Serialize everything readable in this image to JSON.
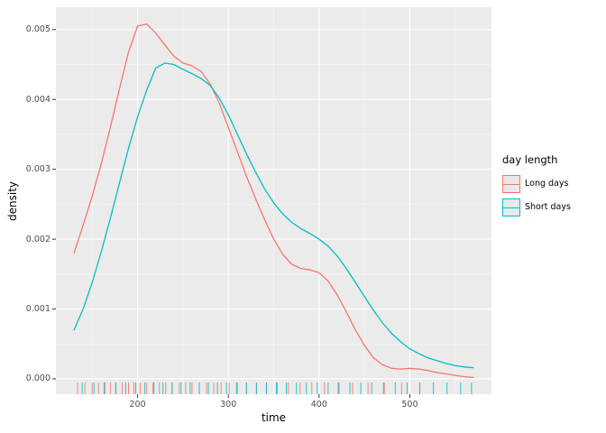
{
  "chart_data": {
    "type": "line",
    "title": "",
    "xlabel": "time",
    "ylabel": "density",
    "xlim": [
      110,
      590
    ],
    "ylim": [
      -0.00022,
      0.00532
    ],
    "xticks": [
      200,
      300,
      400,
      500
    ],
    "xtick_labels": [
      "200",
      "300",
      "400",
      "500"
    ],
    "yticks": [
      0,
      0.001,
      0.002,
      0.003,
      0.004,
      0.005
    ],
    "ytick_labels": [
      "0.000",
      "0.001",
      "0.002",
      "0.003",
      "0.004",
      "0.005"
    ],
    "grid": "major+minor",
    "panel_bg": "#EBEBEB",
    "grid_major_color": "#FFFFFF",
    "grid_minor_color": "#FFFFFF",
    "tick_mark_color": "#333333",
    "legend": {
      "title": "day length",
      "position": "right"
    },
    "series": [
      {
        "name": "Long days",
        "color": "#F8766D",
        "x": [
          130,
          140,
          150,
          160,
          170,
          180,
          190,
          200,
          210,
          220,
          230,
          240,
          250,
          260,
          270,
          280,
          290,
          300,
          310,
          320,
          330,
          340,
          350,
          360,
          370,
          380,
          390,
          400,
          410,
          420,
          430,
          440,
          450,
          460,
          470,
          480,
          490,
          500,
          510,
          520,
          530,
          540,
          550,
          560,
          570
        ],
        "y": [
          0.0018,
          0.0022,
          0.00262,
          0.00308,
          0.0036,
          0.00415,
          0.00468,
          0.00505,
          0.00508,
          0.00495,
          0.00478,
          0.00462,
          0.00452,
          0.00448,
          0.0044,
          0.00422,
          0.00395,
          0.0036,
          0.00325,
          0.0029,
          0.00258,
          0.00228,
          0.002,
          0.00178,
          0.00164,
          0.00158,
          0.00156,
          0.00152,
          0.0014,
          0.0012,
          0.00096,
          0.0007,
          0.00048,
          0.0003,
          0.0002,
          0.00015,
          0.00014,
          0.00015,
          0.00014,
          0.00012,
          9e-05,
          7e-05,
          5e-05,
          3e-05,
          2e-05
        ],
        "rug": [
          134,
          142,
          150,
          157,
          163,
          170,
          176,
          183,
          190,
          196,
          203,
          210,
          217,
          224,
          231,
          238,
          246,
          253,
          260,
          268,
          276,
          284,
          292,
          301,
          310,
          320,
          331,
          342,
          354,
          366,
          379,
          392,
          406,
          421,
          437,
          454,
          472,
          491,
          511
        ]
      },
      {
        "name": "Short days",
        "color": "#00BFC4",
        "x": [
          130,
          140,
          150,
          160,
          170,
          180,
          190,
          200,
          210,
          220,
          230,
          240,
          250,
          260,
          270,
          280,
          290,
          300,
          310,
          320,
          330,
          340,
          350,
          360,
          370,
          380,
          390,
          400,
          410,
          420,
          430,
          440,
          450,
          460,
          470,
          480,
          490,
          500,
          510,
          520,
          530,
          540,
          550,
          560,
          570
        ],
        "y": [
          0.0007,
          0.001,
          0.00138,
          0.00182,
          0.0023,
          0.0028,
          0.0033,
          0.00375,
          0.00413,
          0.00445,
          0.00452,
          0.0045,
          0.00443,
          0.00437,
          0.0043,
          0.0042,
          0.00402,
          0.00378,
          0.0035,
          0.00322,
          0.00296,
          0.00272,
          0.00252,
          0.00236,
          0.00224,
          0.00215,
          0.00208,
          0.002,
          0.0019,
          0.00176,
          0.00158,
          0.00138,
          0.00118,
          0.00098,
          0.0008,
          0.00065,
          0.00053,
          0.00043,
          0.00036,
          0.0003,
          0.00026,
          0.00022,
          0.00019,
          0.00017,
          0.00016
        ],
        "rug": [
          139,
          152,
          164,
          176,
          187,
          198,
          208,
          218,
          228,
          238,
          248,
          258,
          268,
          278,
          288,
          298,
          309,
          320,
          331,
          342,
          353,
          364,
          375,
          386,
          398,
          410,
          422,
          434,
          446,
          458,
          471,
          484,
          497,
          511,
          526,
          541,
          556,
          568
        ]
      }
    ]
  }
}
